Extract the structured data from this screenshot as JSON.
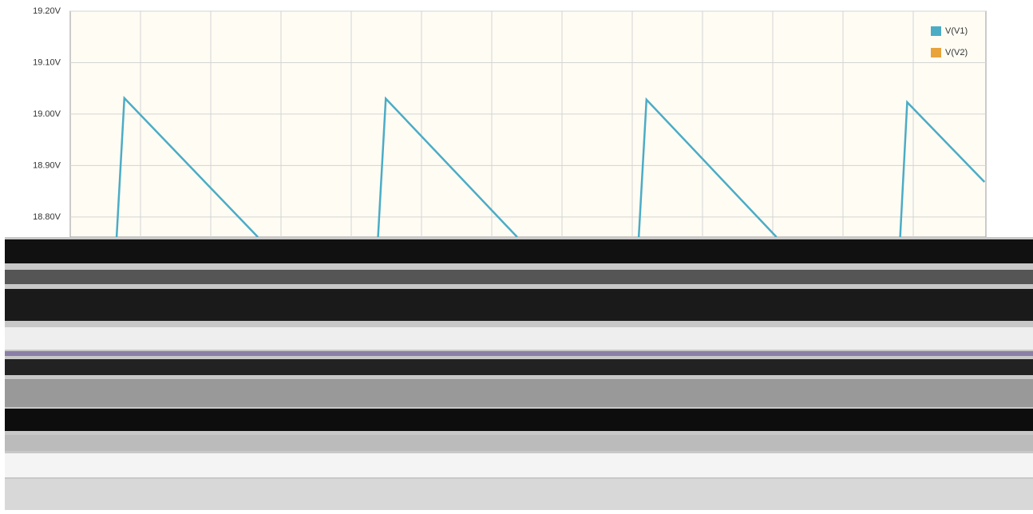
{
  "chart_data": {
    "type": "line",
    "xlim": [
      0,
      13.03
    ],
    "ylim": [
      18.761,
      19.2
    ],
    "yticks": [
      {
        "value": 19.2,
        "label": "19.20V"
      },
      {
        "value": 19.1,
        "label": "19.10V"
      },
      {
        "value": 19.0,
        "label": "19.00V"
      },
      {
        "value": 18.9,
        "label": "18.90V"
      },
      {
        "value": 18.8,
        "label": "18.80V"
      }
    ],
    "grid": true,
    "legend": "upper right",
    "series": [
      {
        "name": "V(V1)",
        "color": "#4bacc6",
        "x": [
          0.66,
          0.77,
          2.67,
          null,
          4.38,
          4.49,
          6.36,
          null,
          8.09,
          8.2,
          10.05,
          null,
          11.81,
          11.91,
          13.01
        ],
        "values": [
          18.761,
          19.031,
          18.761,
          null,
          18.761,
          19.03,
          18.761,
          null,
          18.761,
          19.028,
          18.761,
          null,
          18.761,
          19.023,
          18.868
        ]
      },
      {
        "name": "V(V2)",
        "color": "#e8a33b",
        "x": [],
        "values": []
      }
    ]
  }
}
